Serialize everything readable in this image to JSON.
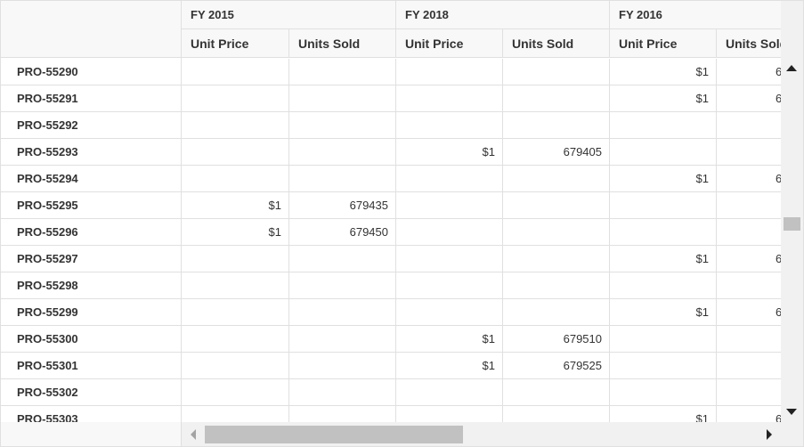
{
  "years": [
    "FY 2015",
    "FY 2018",
    "FY 2016"
  ],
  "measures": [
    "Unit Price",
    "Units Sold",
    "Unit Price",
    "Units Sold",
    "Unit Price",
    "Units Sold"
  ],
  "rows": [
    {
      "label": "PRO-55290",
      "values": [
        "",
        "",
        "",
        "",
        "$1",
        "6"
      ]
    },
    {
      "label": "PRO-55291",
      "values": [
        "",
        "",
        "",
        "",
        "$1",
        "6"
      ]
    },
    {
      "label": "PRO-55292",
      "values": [
        "",
        "",
        "",
        "",
        "",
        ""
      ]
    },
    {
      "label": "PRO-55293",
      "values": [
        "",
        "",
        "$1",
        "679405",
        "",
        ""
      ]
    },
    {
      "label": "PRO-55294",
      "values": [
        "",
        "",
        "",
        "",
        "$1",
        "6"
      ]
    },
    {
      "label": "PRO-55295",
      "values": [
        "$1",
        "679435",
        "",
        "",
        "",
        ""
      ]
    },
    {
      "label": "PRO-55296",
      "values": [
        "$1",
        "679450",
        "",
        "",
        "",
        ""
      ]
    },
    {
      "label": "PRO-55297",
      "values": [
        "",
        "",
        "",
        "",
        "$1",
        "6"
      ]
    },
    {
      "label": "PRO-55298",
      "values": [
        "",
        "",
        "",
        "",
        "",
        ""
      ]
    },
    {
      "label": "PRO-55299",
      "values": [
        "",
        "",
        "",
        "",
        "$1",
        "6"
      ]
    },
    {
      "label": "PRO-55300",
      "values": [
        "",
        "",
        "$1",
        "679510",
        "",
        ""
      ]
    },
    {
      "label": "PRO-55301",
      "values": [
        "",
        "",
        "$1",
        "679525",
        "",
        ""
      ]
    },
    {
      "label": "PRO-55302",
      "values": [
        "",
        "",
        "",
        "",
        "",
        ""
      ]
    },
    {
      "label": "PRO-55303",
      "values": [
        "",
        "",
        "",
        "",
        "$1",
        "6"
      ]
    }
  ]
}
